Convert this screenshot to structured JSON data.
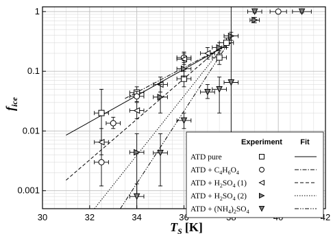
{
  "chart_data": {
    "type": "scatter",
    "xlabel": "T_S [K]",
    "xlabel_main": "T",
    "xlabel_sub": "S",
    "xlabel_unit": "[K]",
    "ylabel": "f_ice",
    "ylabel_main": "f",
    "ylabel_sub": "ice",
    "xlim": [
      30,
      42
    ],
    "ylim": [
      0.0005,
      1.2
    ],
    "y_scale": "log",
    "grid": true,
    "x_ticks": [
      "30",
      "32",
      "34",
      "36",
      "38",
      "40",
      "42"
    ],
    "y_ticks": [
      "0.001",
      "0.01",
      "0.1",
      "1"
    ],
    "legend": {
      "position": "bottom-right",
      "header_experiment": "Experiment",
      "header_fit": "Fit",
      "entries": [
        {
          "pre": "ATD pure",
          "sub": "",
          "mid": "",
          "sub2": "",
          "post": "",
          "marker": "square",
          "line": "solid"
        },
        {
          "pre": "ATD + C",
          "sub": "4",
          "mid": "H",
          "sub2": "6",
          "post": "O",
          "sub3": "4",
          "marker": "circle",
          "line": "dashdot"
        },
        {
          "pre": "ATD + H",
          "sub": "2",
          "mid": "SO",
          "sub2": "4",
          "post": " (1)",
          "marker": "triangle-left",
          "line": "dashed"
        },
        {
          "pre": "ATD + H",
          "sub": "2",
          "mid": "SO",
          "sub2": "4",
          "post": " (2)",
          "marker": "triangle-right",
          "line": "dotted"
        },
        {
          "pre": "ATD + (NH",
          "sub": "4",
          "mid": ")",
          "sub2": "2",
          "post": "SO",
          "sub3": "4",
          "marker": "triangle-down",
          "line": "dashdotdot"
        }
      ]
    },
    "series": [
      {
        "name": "ATD pure",
        "marker": "square",
        "fit": [
          [
            31.0,
            0.0085
          ],
          [
            38.0,
            0.3
          ]
        ],
        "points": [
          {
            "x": 32.5,
            "y": 0.02,
            "xerr": 0.3,
            "ylo": 0.007,
            "yhi": 0.05
          },
          {
            "x": 34.0,
            "y": 0.044,
            "xerr": 0.3,
            "ylo": 0.035,
            "yhi": 0.055
          },
          {
            "x": 36.0,
            "y": 0.075,
            "xerr": 0.3,
            "ylo": 0.055,
            "yhi": 0.1
          },
          {
            "x": 37.5,
            "y": 0.17,
            "xerr": 0.3,
            "ylo": 0.13,
            "yhi": 0.22
          },
          {
            "x": 37.8,
            "y": 0.3,
            "xerr": 0.3,
            "ylo": 0.25,
            "yhi": 0.36
          }
        ]
      },
      {
        "name": "ATD + C4H6O4",
        "marker": "circle",
        "fit": [
          [
            33.5,
            0.035
          ],
          [
            38.0,
            0.3
          ]
        ],
        "points": [
          {
            "x": 32.5,
            "y": 0.003,
            "xerr": 0.3,
            "ylo": 0.0012,
            "yhi": 0.0065
          },
          {
            "x": 33.0,
            "y": 0.0135,
            "xerr": 0.3,
            "ylo": 0.011,
            "yhi": 0.017
          },
          {
            "x": 34.0,
            "y": 0.038,
            "xerr": 0.3,
            "ylo": 0.031,
            "yhi": 0.046
          },
          {
            "x": 36.0,
            "y": 0.17,
            "xerr": 0.3,
            "ylo": 0.14,
            "yhi": 0.21
          },
          {
            "x": 40.0,
            "y": 1.0,
            "xerr": 0.35,
            "ylo": 0.95,
            "yhi": 1.05
          }
        ]
      },
      {
        "name": "ATD + H2SO4 (1)",
        "marker": "triangle-left",
        "fit": [
          [
            31.0,
            0.0015
          ],
          [
            38.0,
            0.36
          ]
        ],
        "points": [
          {
            "x": 32.5,
            "y": 0.0065,
            "xerr": 0.3,
            "ylo": 0.004,
            "yhi": 0.011
          },
          {
            "x": 34.0,
            "y": 0.022,
            "xerr": 0.3,
            "ylo": 0.016,
            "yhi": 0.03
          },
          {
            "x": 35.0,
            "y": 0.06,
            "xerr": 0.3,
            "ylo": 0.045,
            "yhi": 0.08
          },
          {
            "x": 36.0,
            "y": 0.16,
            "xerr": 0.3,
            "ylo": 0.13,
            "yhi": 0.2
          },
          {
            "x": 37.0,
            "y": 0.2,
            "xerr": 0.3,
            "ylo": 0.16,
            "yhi": 0.25
          }
        ]
      },
      {
        "name": "ATD + H2SO4 (2)",
        "marker": "triangle-right",
        "fit": [
          [
            32.2,
            0.0005
          ],
          [
            38.0,
            0.38
          ]
        ],
        "points": [
          {
            "x": 34.0,
            "y": 0.0044,
            "xerr": 0.3,
            "ylo": 0.0008,
            "yhi": 0.009
          },
          {
            "x": 35.0,
            "y": 0.037,
            "xerr": 0.3,
            "ylo": 0.02,
            "yhi": 0.06
          },
          {
            "x": 36.0,
            "y": 0.11,
            "xerr": 0.3,
            "ylo": 0.08,
            "yhi": 0.15
          },
          {
            "x": 37.5,
            "y": 0.25,
            "xerr": 0.3,
            "ylo": 0.2,
            "yhi": 0.3
          },
          {
            "x": 38.0,
            "y": 0.39,
            "xerr": 0.3,
            "ylo": 0.33,
            "yhi": 0.45
          },
          {
            "x": 39.0,
            "y": 0.72,
            "xerr": 0.2,
            "ylo": 0.65,
            "yhi": 0.8
          }
        ]
      },
      {
        "name": "ATD + (NH4)2SO4",
        "marker": "triangle-down",
        "fit": [
          [
            33.3,
            0.0005
          ],
          [
            38.0,
            0.35
          ]
        ],
        "points": [
          {
            "x": 34.0,
            "y": 0.0008,
            "xerr": 0.3,
            "ylo": 0.0005,
            "yhi": 0.0013
          },
          {
            "x": 35.0,
            "y": 0.0043,
            "xerr": 0.3,
            "ylo": 0.0012,
            "yhi": 0.009
          },
          {
            "x": 36.0,
            "y": 0.015,
            "xerr": 0.3,
            "ylo": 0.011,
            "yhi": 0.02
          },
          {
            "x": 37.0,
            "y": 0.045,
            "xerr": 0.3,
            "ylo": 0.035,
            "yhi": 0.06
          },
          {
            "x": 37.5,
            "y": 0.05,
            "xerr": 0.3,
            "ylo": 0.02,
            "yhi": 0.08
          },
          {
            "x": 38.0,
            "y": 0.065,
            "xerr": 0.3,
            "ylo": 0.0005,
            "yhi": 1.2
          },
          {
            "x": 39.0,
            "y": 1.0,
            "xerr": 0.3,
            "ylo": 0.95,
            "yhi": 1.05
          },
          {
            "x": 41.0,
            "y": 1.0,
            "xerr": 0.4,
            "ylo": 0.95,
            "yhi": 1.05
          }
        ]
      }
    ]
  }
}
